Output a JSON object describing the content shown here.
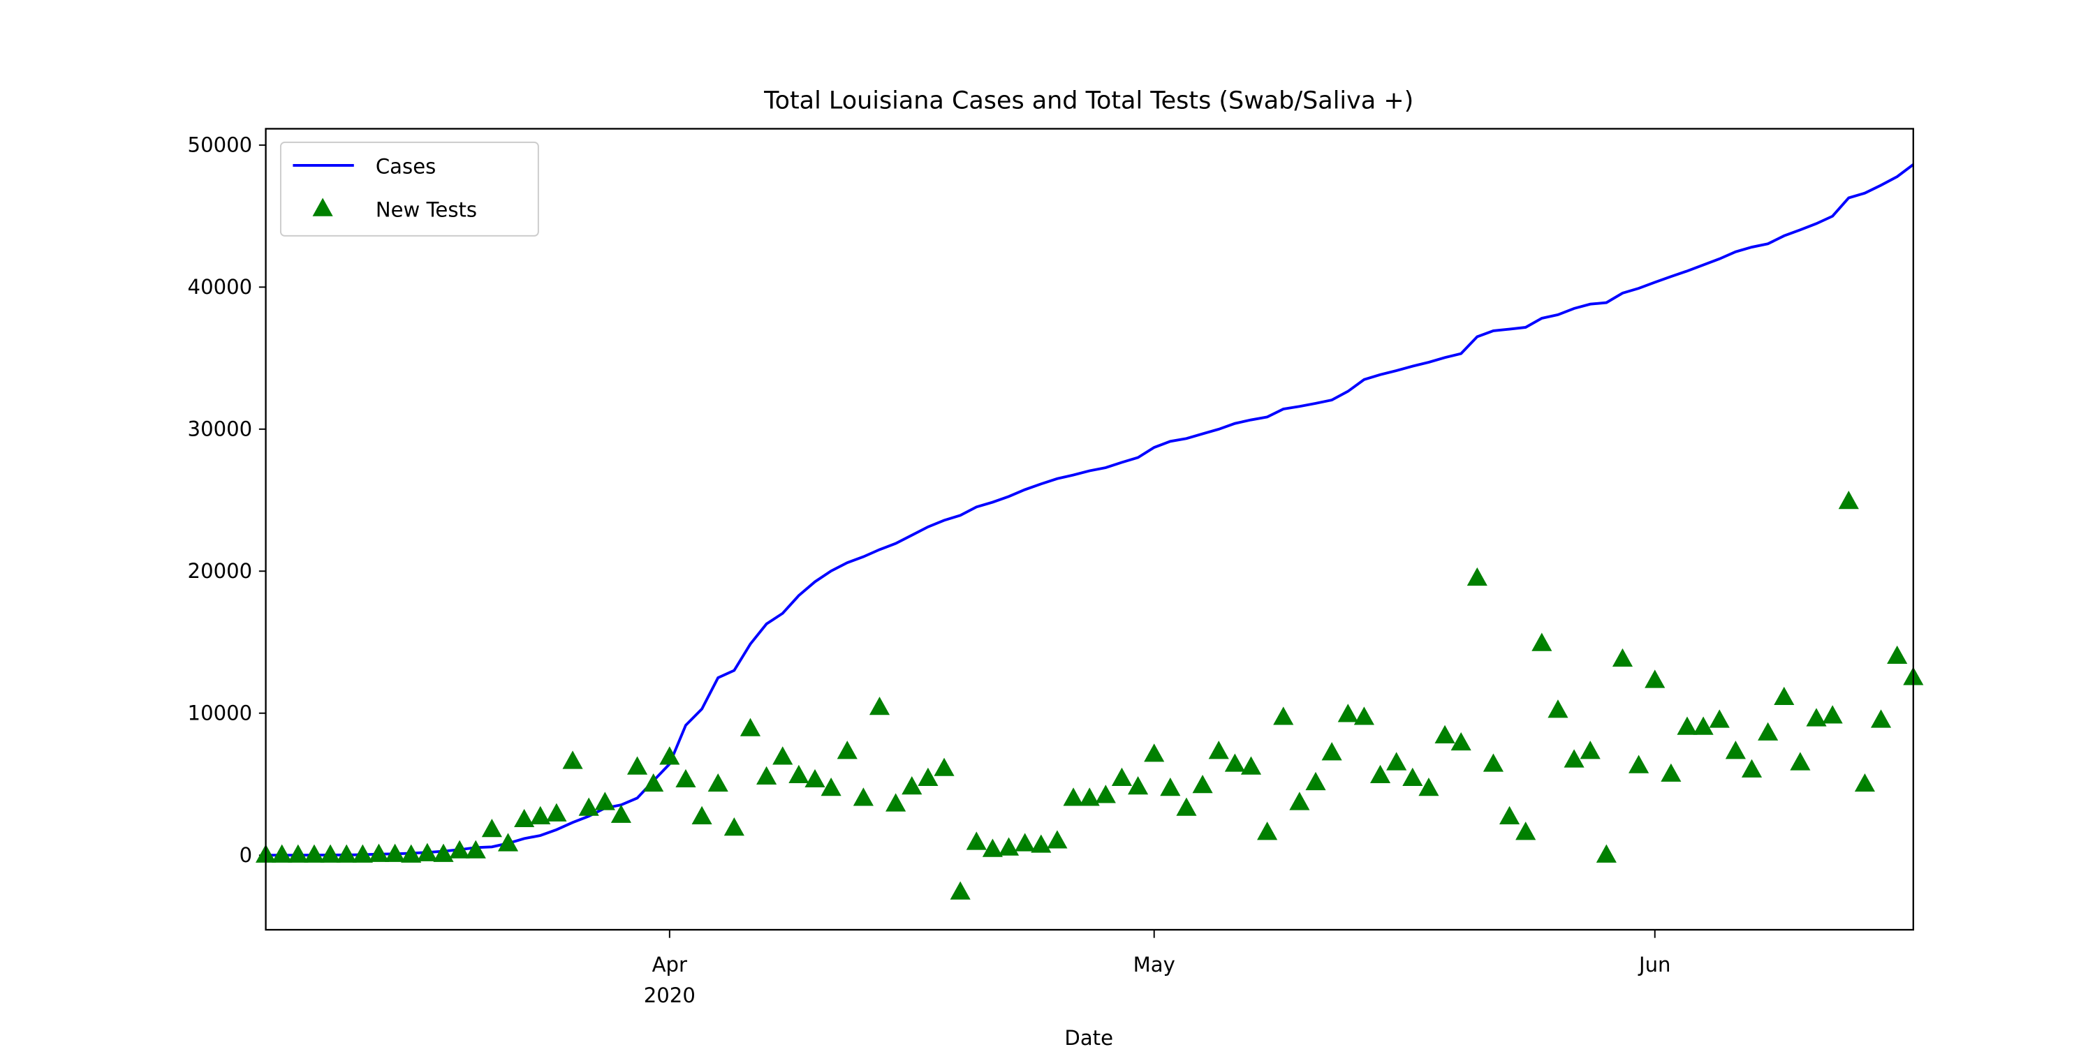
{
  "chart_data": {
    "type": "line_scatter",
    "title": "Total Louisiana Cases and Total Tests (Swab/Saliva +)",
    "xlabel": "Date",
    "x": [
      "2020-03-07",
      "2020-03-08",
      "2020-03-09",
      "2020-03-10",
      "2020-03-11",
      "2020-03-12",
      "2020-03-13",
      "2020-03-14",
      "2020-03-15",
      "2020-03-16",
      "2020-03-17",
      "2020-03-18",
      "2020-03-19",
      "2020-03-20",
      "2020-03-21",
      "2020-03-22",
      "2020-03-23",
      "2020-03-24",
      "2020-03-25",
      "2020-03-26",
      "2020-03-27",
      "2020-03-28",
      "2020-03-29",
      "2020-03-30",
      "2020-03-31",
      "2020-04-01",
      "2020-04-02",
      "2020-04-03",
      "2020-04-04",
      "2020-04-05",
      "2020-04-06",
      "2020-04-07",
      "2020-04-08",
      "2020-04-09",
      "2020-04-10",
      "2020-04-11",
      "2020-04-12",
      "2020-04-13",
      "2020-04-14",
      "2020-04-15",
      "2020-04-16",
      "2020-04-17",
      "2020-04-18",
      "2020-04-19",
      "2020-04-20",
      "2020-04-21",
      "2020-04-22",
      "2020-04-23",
      "2020-04-24",
      "2020-04-25",
      "2020-04-26",
      "2020-04-27",
      "2020-04-28",
      "2020-04-29",
      "2020-04-30",
      "2020-05-01",
      "2020-05-02",
      "2020-05-03",
      "2020-05-04",
      "2020-05-05",
      "2020-05-06",
      "2020-05-07",
      "2020-05-08",
      "2020-05-09",
      "2020-05-10",
      "2020-05-11",
      "2020-05-12",
      "2020-05-13",
      "2020-05-14",
      "2020-05-15",
      "2020-05-16",
      "2020-05-17",
      "2020-05-18",
      "2020-05-19",
      "2020-05-20",
      "2020-05-21",
      "2020-05-22",
      "2020-05-23",
      "2020-05-24",
      "2020-05-25",
      "2020-05-26",
      "2020-05-27",
      "2020-05-28",
      "2020-05-29",
      "2020-05-30",
      "2020-05-31",
      "2020-06-01",
      "2020-06-02",
      "2020-06-03",
      "2020-06-04",
      "2020-06-05",
      "2020-06-06",
      "2020-06-07",
      "2020-06-08",
      "2020-06-09",
      "2020-06-10",
      "2020-06-11",
      "2020-06-12",
      "2020-06-13",
      "2020-06-14",
      "2020-06-15",
      "2020-06-16",
      "2020-06-17"
    ],
    "series": [
      {
        "name": "Cases",
        "color": "#0000ff",
        "kind": "line",
        "values": [
          0,
          0,
          1,
          6,
          13,
          19,
          36,
          77,
          91,
          136,
          196,
          280,
          392,
          538,
          585,
          837,
          1172,
          1388,
          1795,
          2305,
          2746,
          3315,
          3540,
          4025,
          5237,
          6424,
          9150,
          10297,
          12496,
          13010,
          14867,
          16284,
          17030,
          18283,
          19253,
          20014,
          20595,
          21016,
          21518,
          21951,
          22532,
          23118,
          23580,
          23928,
          24523,
          24854,
          25258,
          25739,
          26140,
          26512,
          26773,
          27068,
          27286,
          27660,
          28001,
          28711,
          29140,
          29340,
          29673,
          29996,
          30399,
          30652,
          30855,
          31417,
          31600,
          31815,
          32050,
          32662,
          33489,
          33837,
          34117,
          34432,
          34709,
          35038,
          35316,
          36504,
          36925,
          37040,
          37169,
          37809,
          38054,
          38497,
          38802,
          38907,
          39577,
          39916,
          40341,
          40746,
          41133,
          41562,
          41989,
          42486,
          42816,
          43050,
          43612,
          44030,
          44472,
          44995,
          46283,
          46619,
          47172,
          47779,
          48634
        ]
      },
      {
        "name": "New Tests",
        "color": "#008000",
        "kind": "scatter",
        "values": [
          0,
          0,
          0,
          0,
          0,
          0,
          0,
          50,
          50,
          0,
          100,
          50,
          300,
          300,
          1800,
          800,
          2500,
          2700,
          2900,
          6600,
          3300,
          3700,
          2800,
          6200,
          5000,
          6900,
          5300,
          2700,
          5000,
          1900,
          8900,
          5500,
          6900,
          5600,
          5300,
          4700,
          7300,
          4000,
          10400,
          3600,
          4800,
          5400,
          6100,
          -2600,
          900,
          400,
          500,
          800,
          700,
          1000,
          4000,
          4000,
          4200,
          5400,
          4800,
          7100,
          4700,
          3300,
          4900,
          7300,
          6400,
          6200,
          1600,
          9700,
          3700,
          5100,
          7200,
          9900,
          9700,
          5600,
          6500,
          5400,
          4700,
          8400,
          7900,
          19500,
          6400,
          2700,
          1600,
          14900,
          10200,
          6700,
          7300,
          0,
          13800,
          6300,
          12300,
          5700,
          9000,
          9000,
          9500,
          7300,
          6000,
          8600,
          11100,
          6500,
          9600,
          9800,
          24900,
          5000,
          9500,
          14000,
          12500
        ]
      }
    ],
    "xlim": [
      "2020-03-07",
      "2020-06-17"
    ],
    "xticks": [
      {
        "value": "2020-04-01",
        "label": "Apr\n2020"
      },
      {
        "value": "2020-05-01",
        "label": "May"
      },
      {
        "value": "2020-06-01",
        "label": "Jun"
      }
    ],
    "ylim": [
      -5250,
      51150
    ],
    "yticks": [
      0,
      10000,
      20000,
      30000,
      40000,
      50000
    ],
    "grid": false,
    "legend": "upper-left"
  }
}
